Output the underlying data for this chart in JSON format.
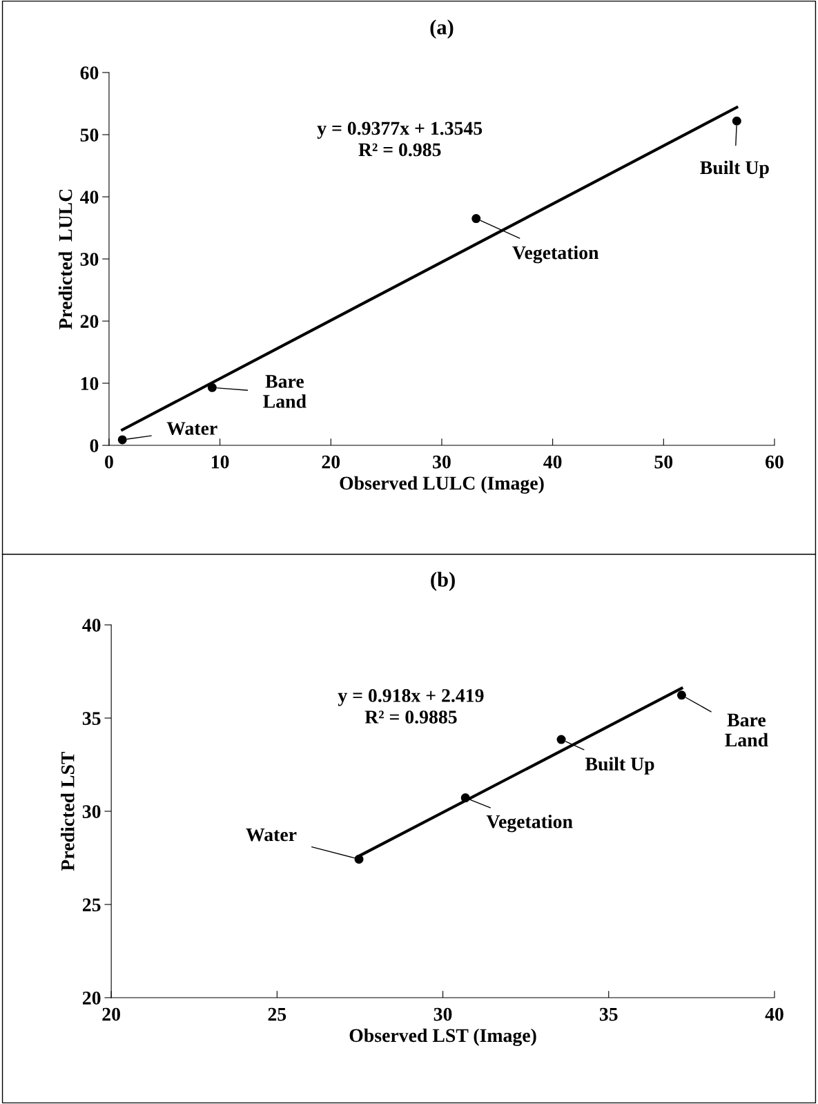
{
  "chart_data": [
    {
      "type": "scatter",
      "title": "(a)",
      "xlabel": "Observed LULC (Image)",
      "ylabel": "Predicted  LULC",
      "marker": "circle",
      "grid": false,
      "legend": false,
      "series": [
        {
          "color": "#000000",
          "x": [
            1.2,
            9.3,
            33.1,
            56.6
          ],
          "values": [
            0.9,
            9.3,
            36.5,
            52.2
          ]
        },
        {
          "type": "line",
          "marker": "none",
          "color": "#000000",
          "x": [
            1.2,
            56.6
          ],
          "values": [
            2.5,
            54.4
          ]
        }
      ],
      "xlim": [
        0,
        60
      ],
      "xticks": [
        0,
        10,
        20,
        30,
        40,
        50,
        60
      ],
      "ylim": [
        0,
        60
      ],
      "yticks": [
        0,
        10,
        20,
        30,
        40,
        50,
        60
      ],
      "annotations": [
        "y = 0.9377x + 1.3545\nR² = 0.985",
        {
          "text": "Water",
          "x": 1.2,
          "y": 0.9
        },
        {
          "text": "Bare\nLand",
          "x": 9.3,
          "y": 9.3
        },
        {
          "text": "Vegetation",
          "x": 33.1,
          "y": 36.5
        },
        {
          "text": "Built Up",
          "x": 56.6,
          "y": 52.2
        }
      ]
    },
    {
      "type": "scatter",
      "title": "(b)",
      "xlabel": "Observed LST (Image)",
      "ylabel": "Predicted LST",
      "marker": "circle",
      "grid": false,
      "legend": false,
      "series": [
        {
          "color": "#000000",
          "x": [
            27.47,
            30.68,
            33.57,
            37.2
          ],
          "values": [
            27.43,
            30.72,
            33.85,
            36.23
          ]
        },
        {
          "type": "line",
          "marker": "none",
          "color": "#000000",
          "x": [
            27.47,
            37.2
          ],
          "values": [
            27.6,
            36.6
          ]
        }
      ],
      "xlim": [
        20,
        40
      ],
      "xticks": [
        20,
        25,
        30,
        35,
        40
      ],
      "ylim": [
        20,
        40
      ],
      "yticks": [
        20,
        25,
        30,
        35,
        40
      ],
      "annotations": [
        "y = 0.918x + 2.419\nR² = 0.9885",
        {
          "text": "Water",
          "x": 27.47,
          "y": 27.43
        },
        {
          "text": "Vegetation",
          "x": 30.68,
          "y": 30.72
        },
        {
          "text": "Built Up",
          "x": 33.57,
          "y": 33.85
        },
        {
          "text": "Bare\nLand",
          "x": 37.2,
          "y": 36.23
        }
      ]
    }
  ]
}
